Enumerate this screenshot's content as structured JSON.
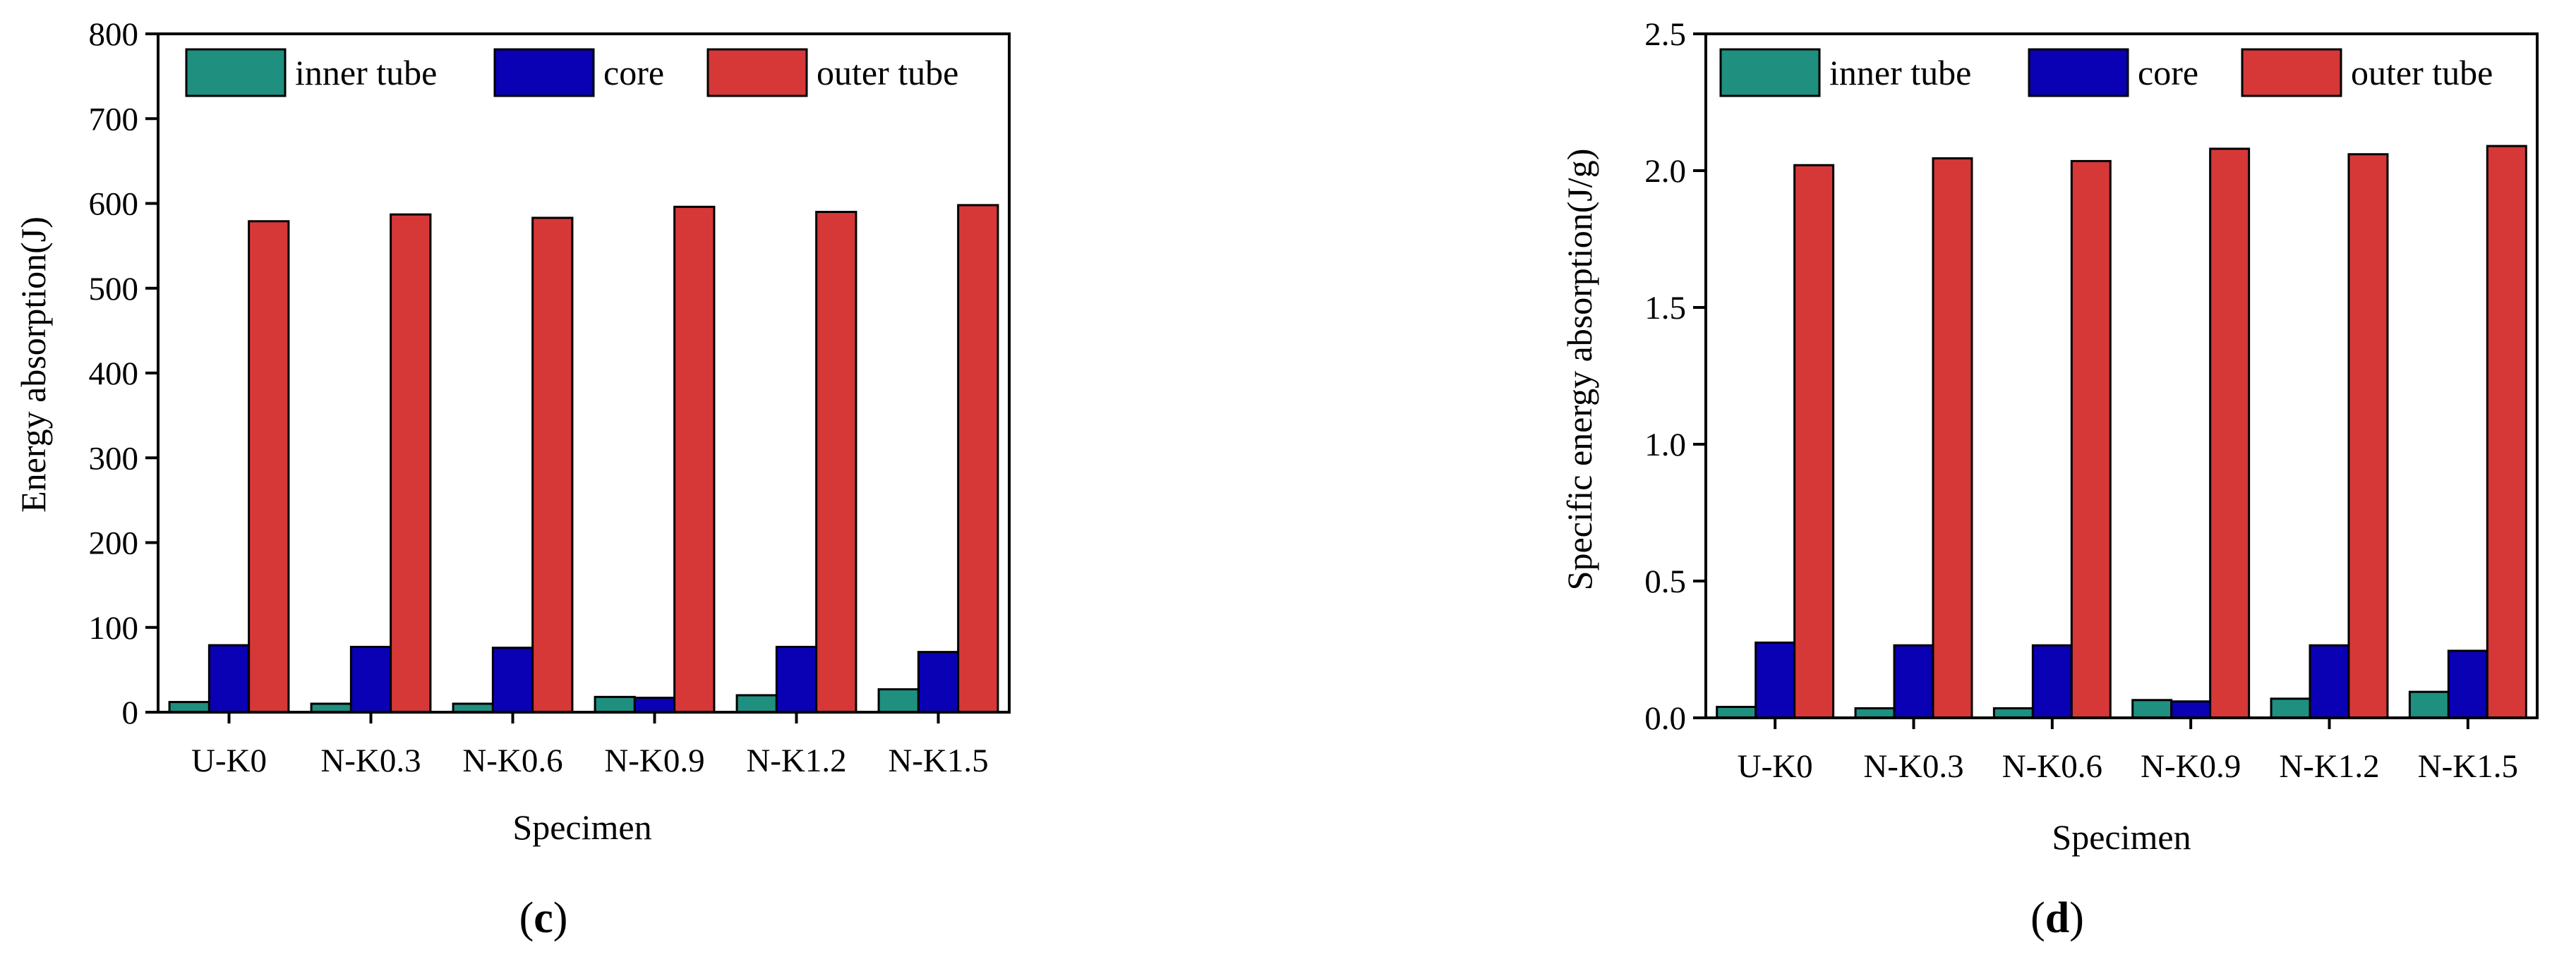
{
  "colors": {
    "inner_tube": "#1F8F80",
    "core": "#0A00B4",
    "outer_tube": "#D63838",
    "frame": "#000000"
  },
  "chart_data": [
    {
      "type": "bar",
      "panel_label": "c",
      "categories": [
        "U-K0",
        "N-K0.3",
        "N-K0.6",
        "N-K0.9",
        "N-K1.2",
        "N-K1.5"
      ],
      "series": [
        {
          "name": "inner tube",
          "values": [
            12,
            10,
            10,
            18,
            20,
            27
          ]
        },
        {
          "name": "core",
          "values": [
            79,
            77,
            76,
            17,
            77,
            71
          ]
        },
        {
          "name": "outer tube",
          "values": [
            579,
            587,
            583,
            596,
            590,
            598
          ]
        }
      ],
      "xlabel": "Specimen",
      "ylabel": "Energy absorption(J)",
      "ylim": [
        0,
        800
      ],
      "yticks": [
        0,
        100,
        200,
        300,
        400,
        500,
        600,
        700,
        800
      ],
      "ytick_labels": [
        "0",
        "100",
        "200",
        "300",
        "400",
        "500",
        "600",
        "700",
        "800"
      ],
      "legend_position": "top"
    },
    {
      "type": "bar",
      "panel_label": "d",
      "categories": [
        "U-K0",
        "N-K0.3",
        "N-K0.6",
        "N-K0.9",
        "N-K1.2",
        "N-K1.5"
      ],
      "series": [
        {
          "name": "inner tube",
          "values": [
            0.04,
            0.035,
            0.035,
            0.065,
            0.07,
            0.095
          ]
        },
        {
          "name": "core",
          "values": [
            0.275,
            0.265,
            0.265,
            0.06,
            0.265,
            0.245
          ]
        },
        {
          "name": "outer tube",
          "values": [
            2.02,
            2.045,
            2.035,
            2.08,
            2.06,
            2.09
          ]
        }
      ],
      "xlabel": "Specimen",
      "ylabel": "Specific energy absorption(J/g)",
      "ylim": [
        0,
        2.5
      ],
      "yticks": [
        0,
        0.5,
        1.0,
        1.5,
        2.0,
        2.5
      ],
      "ytick_labels": [
        "0.0",
        "0.5",
        "1.0",
        "1.5",
        "2.0",
        "2.5"
      ],
      "legend_position": "top"
    }
  ]
}
